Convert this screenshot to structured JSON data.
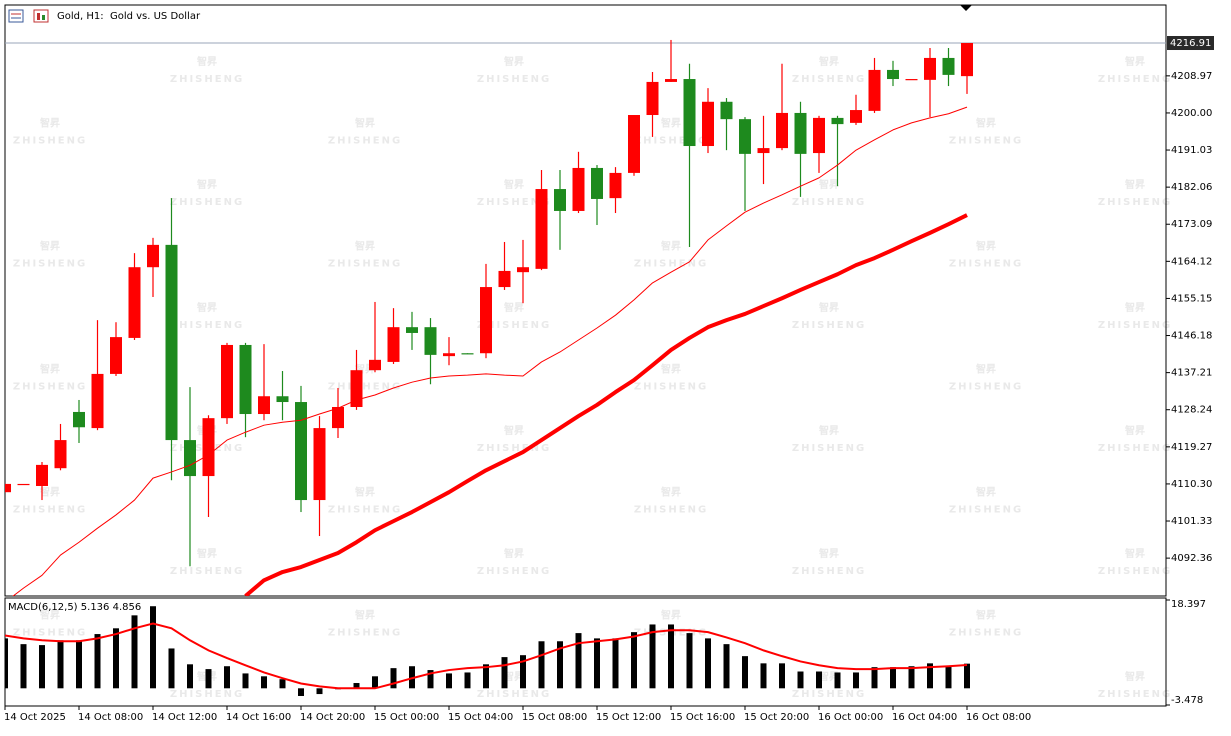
{
  "header": {
    "title": "Gold, H1:  Gold vs. US Dollar"
  },
  "watermark": {
    "logo": "智昇",
    "text": "ZHISHENG"
  },
  "chart_data": [
    {
      "type": "candlestick",
      "open": [
        4108.3,
        4110.3,
        4109.8,
        4114.1,
        4127.7,
        4123.8,
        4136.9,
        4145.6,
        4162.7,
        4168.1,
        4120.9,
        4112.2,
        4126.2,
        4143.9,
        4127.2,
        4131.5,
        4130.1,
        4106.4,
        4123.8,
        4128.9,
        4137.8,
        4139.8,
        4148.2,
        4148.2,
        4141.2,
        4141.9,
        4141.9,
        4157.9,
        4161.5,
        4162.3,
        4181.6,
        4176.3,
        4186.7,
        4179.4,
        4185.5,
        4199.5,
        4207.5,
        4208.2,
        4192.0,
        4202.7,
        4198.5,
        4190.3,
        4191.5,
        4200.0,
        4190.3,
        4198.8,
        4197.6,
        4200.5,
        4210.4,
        4208.2,
        4208.0,
        4213.3,
        4208.9
      ],
      "high": [
        4110.3,
        4110.3,
        4115.6,
        4124.8,
        4130.6,
        4149.9,
        4149.4,
        4166.1,
        4169.8,
        4179.4,
        4133.7,
        4126.9,
        4144.4,
        4144.4,
        4144.1,
        4137.6,
        4134.0,
        4126.7,
        4133.5,
        4142.7,
        4154.3,
        4152.8,
        4151.9,
        4150.4,
        4145.8,
        4141.9,
        4163.5,
        4168.8,
        4169.3,
        4186.2,
        4186.2,
        4190.6,
        4187.4,
        4186.9,
        4199.5,
        4209.9,
        4217.65,
        4211.9,
        4206.0,
        4203.6,
        4199.0,
        4199.3,
        4211.9,
        4202.7,
        4199.3,
        4199.3,
        4204.4,
        4213.3,
        4212.6,
        4208.2,
        4215.7,
        4215.7,
        4216.91
      ],
      "low": [
        4108.3,
        4110.3,
        4106.4,
        4113.6,
        4120.2,
        4123.3,
        4136.4,
        4145.1,
        4155.5,
        4111.2,
        4090.4,
        4102.3,
        4124.8,
        4121.6,
        4125.7,
        4125.7,
        4103.5,
        4097.7,
        4121.4,
        4128.2,
        4137.3,
        4139.3,
        4142.7,
        4134.4,
        4139.0,
        4141.7,
        4140.7,
        4157.2,
        4154.0,
        4162.0,
        4166.9,
        4175.8,
        4172.9,
        4175.8,
        4184.8,
        4194.2,
        4207.5,
        4167.6,
        4190.3,
        4191.0,
        4176.3,
        4182.8,
        4191.0,
        4179.7,
        4185.5,
        4182.3,
        4197.1,
        4200.0,
        4206.5,
        4208.2,
        4199.0,
        4206.5,
        4204.6
      ],
      "close": [
        4110.3,
        4110.3,
        4114.9,
        4120.9,
        4124.0,
        4136.9,
        4145.8,
        4162.7,
        4168.1,
        4120.9,
        4112.2,
        4126.2,
        4143.9,
        4127.2,
        4131.5,
        4130.1,
        4106.4,
        4123.8,
        4128.9,
        4137.8,
        4140.3,
        4148.2,
        4146.8,
        4141.5,
        4141.9,
        4141.7,
        4157.9,
        4161.8,
        4162.7,
        4181.6,
        4176.3,
        4186.7,
        4179.2,
        4185.5,
        4199.5,
        4207.5,
        4208.2,
        4192.0,
        4202.7,
        4198.5,
        4190.1,
        4191.5,
        4200.0,
        4190.1,
        4198.8,
        4197.3,
        4200.7,
        4210.4,
        4208.2,
        4208.2,
        4213.3,
        4209.2,
        4216.91
      ],
      "up_color": "#ff0000",
      "down_color": "#1e8a1e",
      "price_line_color": "#9aa6b8",
      "overlays": [
        {
          "color": "#ff0000",
          "width": 1,
          "values": [
            4081.7,
            4085.1,
            4088.2,
            4093.1,
            4096.2,
            4099.6,
            4102.8,
            4106.4,
            4111.7,
            4113.2,
            4114.8,
            4117.3,
            4120.9,
            4122.8,
            4124.5,
            4125.2,
            4125.7,
            4127.2,
            4128.6,
            4130.6,
            4131.8,
            4133.5,
            4134.9,
            4135.9,
            4136.4,
            4136.6,
            4136.9,
            4136.6,
            4136.4,
            4139.8,
            4142.2,
            4145.1,
            4148.0,
            4151.1,
            4154.8,
            4158.9,
            4161.5,
            4164.0,
            4169.3,
            4172.7,
            4176.0,
            4178.2,
            4180.2,
            4182.3,
            4184.3,
            4187.4,
            4191.0,
            4193.5,
            4195.9,
            4197.6,
            4198.8,
            4199.8,
            4201.4
          ]
        },
        {
          "color": "#ff0000",
          "width": 4,
          "values": [
            null,
            null,
            null,
            null,
            null,
            null,
            null,
            null,
            null,
            null,
            null,
            null,
            null,
            4083.2,
            4087.0,
            4089.0,
            4090.2,
            4091.9,
            4093.6,
            4096.2,
            4099.1,
            4101.3,
            4103.5,
            4105.9,
            4108.3,
            4111.0,
            4113.6,
            4115.8,
            4118.0,
            4120.9,
            4123.8,
            4126.7,
            4129.4,
            4132.5,
            4135.4,
            4139.0,
            4142.7,
            4145.6,
            4148.2,
            4149.9,
            4151.4,
            4153.3,
            4155.2,
            4157.2,
            4159.1,
            4161.0,
            4163.2,
            4164.9,
            4166.9,
            4169.0,
            4171.0,
            4173.1,
            4175.3
          ]
        }
      ],
      "ylim": [
        4083.2,
        4226.1
      ],
      "yticks": [
        4208.97,
        {
          "value": 4200,
          "label": "4200.00"
        },
        4191.03,
        4182.06,
        4173.09,
        4164.12,
        4155.15,
        4146.18,
        4137.21,
        4128.24,
        4119.27,
        {
          "value": 4110.3,
          "label": "4110.30"
        },
        4101.33,
        4092.36
      ]
    },
    {
      "type": "macd",
      "title": "MACD(6,12,5)",
      "histogram": {
        "color": "#000000",
        "values": [
          10.4,
          9.2,
          9.0,
          10.0,
          10.0,
          11.3,
          12.5,
          15.2,
          17.1,
          8.3,
          5.0,
          4.0,
          4.6,
          3.1,
          2.5,
          1.9,
          -1.6,
          -1.2,
          -0.2,
          1.1,
          2.5,
          4.2,
          4.6,
          3.8,
          3.1,
          3.3,
          5.0,
          6.5,
          6.9,
          9.8,
          9.8,
          11.5,
          10.4,
          10.4,
          11.7,
          13.3,
          13.3,
          11.5,
          10.4,
          9.2,
          6.7,
          5.2,
          5.2,
          3.5,
          3.5,
          3.3,
          3.3,
          4.4,
          4.4,
          4.6,
          5.2,
          4.6,
          5.136
        ]
      },
      "signal": {
        "color": "#ff0000",
        "values": [
          11.0,
          10.4,
          10.0,
          9.8,
          9.8,
          10.4,
          11.3,
          12.5,
          13.5,
          12.5,
          10.0,
          7.9,
          6.3,
          4.8,
          3.3,
          2.1,
          1.0,
          0.4,
          0.0,
          0.0,
          0.0,
          1.0,
          2.1,
          3.1,
          3.8,
          4.2,
          4.4,
          4.8,
          5.6,
          6.9,
          8.3,
          9.4,
          9.8,
          10.2,
          10.8,
          11.7,
          12.1,
          12.1,
          11.7,
          10.6,
          9.4,
          7.9,
          6.7,
          5.6,
          4.8,
          4.2,
          4.0,
          4.0,
          4.2,
          4.2,
          4.4,
          4.6,
          4.856
        ]
      },
      "ylim": [
        -3.478,
        18.397
      ],
      "yticks": [
        18.397,
        -3.478
      ],
      "categories": [
        "14 Oct 2025",
        null,
        null,
        null,
        "14 Oct 08:00",
        null,
        null,
        null,
        "14 Oct 12:00",
        null,
        null,
        null,
        "14 Oct 16:00",
        null,
        null,
        null,
        "14 Oct 20:00",
        null,
        null,
        null,
        "15 Oct 00:00",
        null,
        null,
        null,
        "15 Oct 04:00",
        null,
        null,
        null,
        "15 Oct 08:00",
        null,
        null,
        null,
        "15 Oct 12:00",
        null,
        null,
        null,
        "15 Oct 16:00",
        null,
        null,
        null,
        "15 Oct 20:00",
        null,
        null,
        null,
        "16 Oct 00:00",
        null,
        null,
        null,
        "16 Oct 04:00",
        null,
        null,
        null,
        "16 Oct 08:00"
      ]
    }
  ]
}
